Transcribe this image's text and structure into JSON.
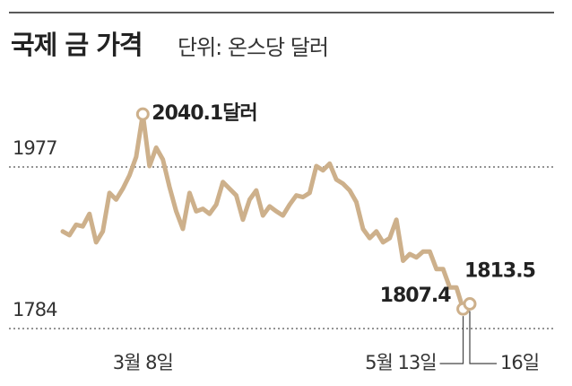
{
  "chart_data": {
    "type": "line",
    "title": "국제 금 가격",
    "subtitle": "단위: 온스당 달러",
    "categories": [
      null,
      null,
      null,
      null,
      null,
      null,
      null,
      null,
      null,
      null,
      null,
      null,
      "3월 8일",
      null,
      null,
      null,
      null,
      null,
      null,
      null,
      null,
      null,
      null,
      null,
      null,
      null,
      null,
      null,
      null,
      null,
      null,
      null,
      null,
      null,
      null,
      null,
      null,
      null,
      null,
      null,
      null,
      null,
      null,
      null,
      null,
      null,
      null,
      null,
      null,
      null,
      null,
      null,
      null,
      null,
      null,
      null,
      null,
      null,
      null,
      null,
      "5월 13일",
      "16일"
    ],
    "values": [
      1900,
      1895.5,
      1908,
      1906,
      1921,
      1887,
      1900,
      1946,
      1938,
      1951,
      1967,
      1989,
      2040.1,
      1978,
      2000,
      1986,
      1953,
      1924,
      1903,
      1946,
      1924,
      1927,
      1921,
      1932,
      1959,
      1951,
      1943,
      1914,
      1938,
      1949,
      1919,
      1930,
      1924,
      1919,
      1932,
      1943,
      1941,
      1946,
      1978,
      1973,
      1981,
      1962,
      1957,
      1949,
      1935,
      1903,
      1892,
      1900,
      1887,
      1892,
      1914,
      1865,
      1873,
      1869,
      1876,
      1876,
      1855,
      1855,
      1833,
      1833,
      1807.4,
      1813.5
    ],
    "value_labels": [
      null,
      null,
      null,
      null,
      null,
      null,
      null,
      null,
      null,
      null,
      null,
      null,
      "2040.1달러",
      null,
      null,
      null,
      null,
      null,
      null,
      null,
      null,
      null,
      null,
      null,
      null,
      null,
      null,
      null,
      null,
      null,
      null,
      null,
      null,
      null,
      null,
      null,
      null,
      null,
      null,
      null,
      null,
      null,
      null,
      null,
      null,
      null,
      null,
      null,
      null,
      null,
      null,
      null,
      null,
      null,
      null,
      null,
      null,
      null,
      null,
      null,
      "1807.4",
      "1813.5"
    ],
    "color": "#cdb08b",
    "ylim": [
      1760,
      2080
    ],
    "yticks": [
      1784,
      1977
    ],
    "grid": true
  }
}
